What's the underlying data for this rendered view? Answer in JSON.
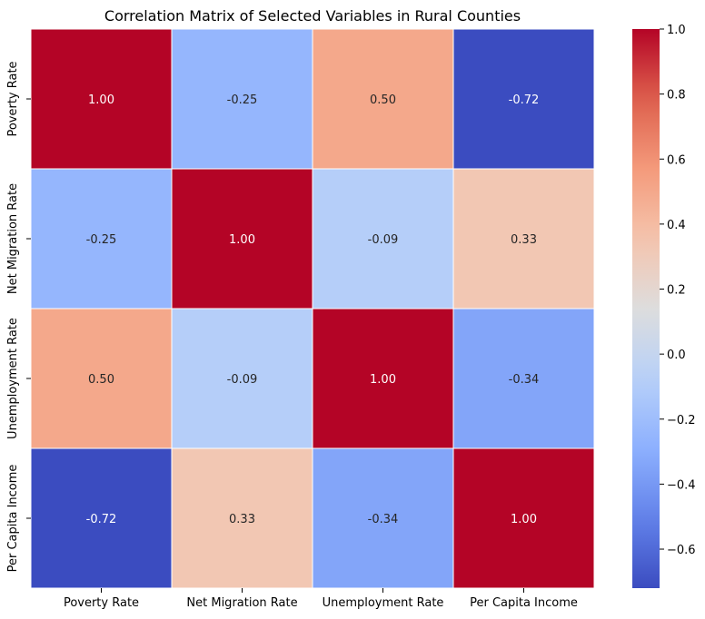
{
  "chart_data": {
    "type": "heatmap",
    "title": "Correlation Matrix of Selected Variables in Rural Counties",
    "xlabel": "",
    "ylabel": "",
    "x_categories": [
      "Poverty Rate",
      "Net Migration Rate",
      "Unemployment Rate",
      "Per Capita Income"
    ],
    "y_categories": [
      "Poverty Rate",
      "Net Migration Rate",
      "Unemployment Rate",
      "Per Capita Income"
    ],
    "values": [
      [
        1.0,
        -0.25,
        0.5,
        -0.72
      ],
      [
        -0.25,
        1.0,
        -0.09,
        0.33
      ],
      [
        0.5,
        -0.09,
        1.0,
        -0.34
      ],
      [
        -0.72,
        0.33,
        -0.34,
        1.0
      ]
    ],
    "value_labels": [
      [
        "1.00",
        "-0.25",
        "0.50",
        "-0.72"
      ],
      [
        "-0.25",
        "1.00",
        "-0.09",
        "0.33"
      ],
      [
        "0.50",
        "-0.09",
        "1.00",
        "-0.34"
      ],
      [
        "-0.72",
        "0.33",
        "-0.34",
        "1.00"
      ]
    ],
    "colormap": "coolwarm",
    "color_range": [
      -0.72,
      1.0
    ],
    "colorbar_ticks": [
      -0.6,
      -0.4,
      -0.2,
      0.0,
      0.2,
      0.4,
      0.6,
      0.8,
      1.0
    ],
    "colorbar_tick_labels": [
      "−0.6",
      "−0.4",
      "−0.2",
      "0.0",
      "0.2",
      "0.4",
      "0.6",
      "0.8",
      "1.0"
    ],
    "colorbar_placement": "right",
    "grid": false,
    "cell_border_color": "#ffffff"
  }
}
